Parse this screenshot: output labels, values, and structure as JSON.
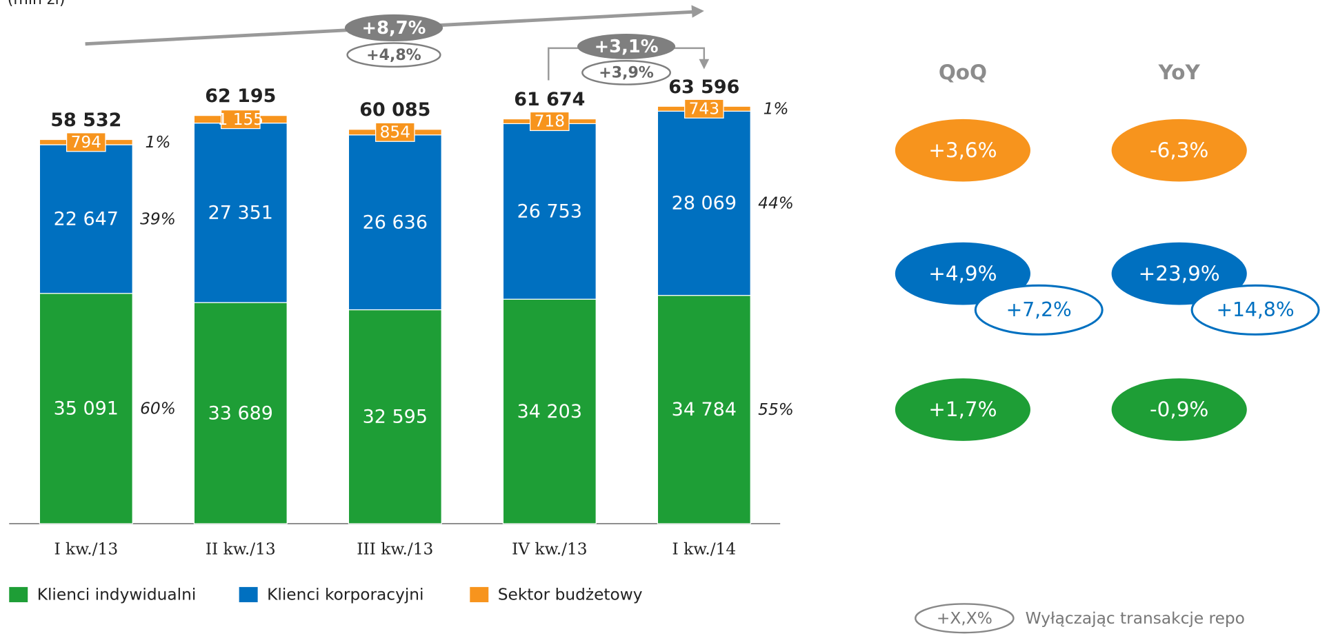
{
  "chart_data": {
    "type": "bar",
    "stacked": true,
    "unit_label": "(mln zł)",
    "categories": [
      "I kw./13",
      "II kw./13",
      "III kw./13",
      "IV kw./13",
      "I kw./14"
    ],
    "series": [
      {
        "name": "Klienci indywidualni",
        "color": "#1e9e36",
        "values": [
          35091,
          33689,
          32595,
          34203,
          34784
        ],
        "value_labels": [
          "35 091",
          "33 689",
          "32 595",
          "34 203",
          "34 784"
        ],
        "share_labels": [
          "60%",
          null,
          null,
          null,
          "55%"
        ]
      },
      {
        "name": "Klienci korporacyjni",
        "color": "#0070c0",
        "values": [
          22647,
          27351,
          26636,
          26753,
          28069
        ],
        "value_labels": [
          "22 647",
          "27 351",
          "26 636",
          "26 753",
          "28 069"
        ],
        "share_labels": [
          "39%",
          null,
          null,
          null,
          "44%"
        ]
      },
      {
        "name": "Sektor budżetowy",
        "color": "#f7941d",
        "values": [
          794,
          1155,
          854,
          718,
          743
        ],
        "value_labels": [
          "794",
          "1 155",
          "854",
          "718",
          "743"
        ],
        "share_labels": [
          "1%",
          null,
          null,
          null,
          "1%"
        ]
      }
    ],
    "totals": {
      "values": [
        58532,
        62195,
        60085,
        61674,
        63596
      ],
      "value_labels": [
        "58 532",
        "62 195",
        "60 085",
        "61 674",
        "63 596"
      ]
    },
    "growth": [
      {
        "label": "+8,7%",
        "ex_repo": "+4,8%"
      },
      {
        "label": "+3,1%",
        "ex_repo": "+3,9%"
      }
    ],
    "panel": {
      "headers": [
        "QoQ",
        "YoY"
      ],
      "rows": [
        {
          "color": "#f7941d",
          "values": [
            "+3,6%",
            "-6,3%"
          ],
          "ex_repo": [
            null,
            null
          ]
        },
        {
          "color": "#0070c0",
          "values": [
            "+4,9%",
            "+23,9%"
          ],
          "ex_repo": [
            "+7,2%",
            "+14,8%"
          ]
        },
        {
          "color": "#1e9e36",
          "values": [
            "+1,7%",
            "-0,9%"
          ],
          "ex_repo": [
            null,
            null
          ]
        }
      ]
    },
    "note": {
      "symbol": "+X,X%",
      "text": "Wyłączając transakcje repo"
    }
  }
}
